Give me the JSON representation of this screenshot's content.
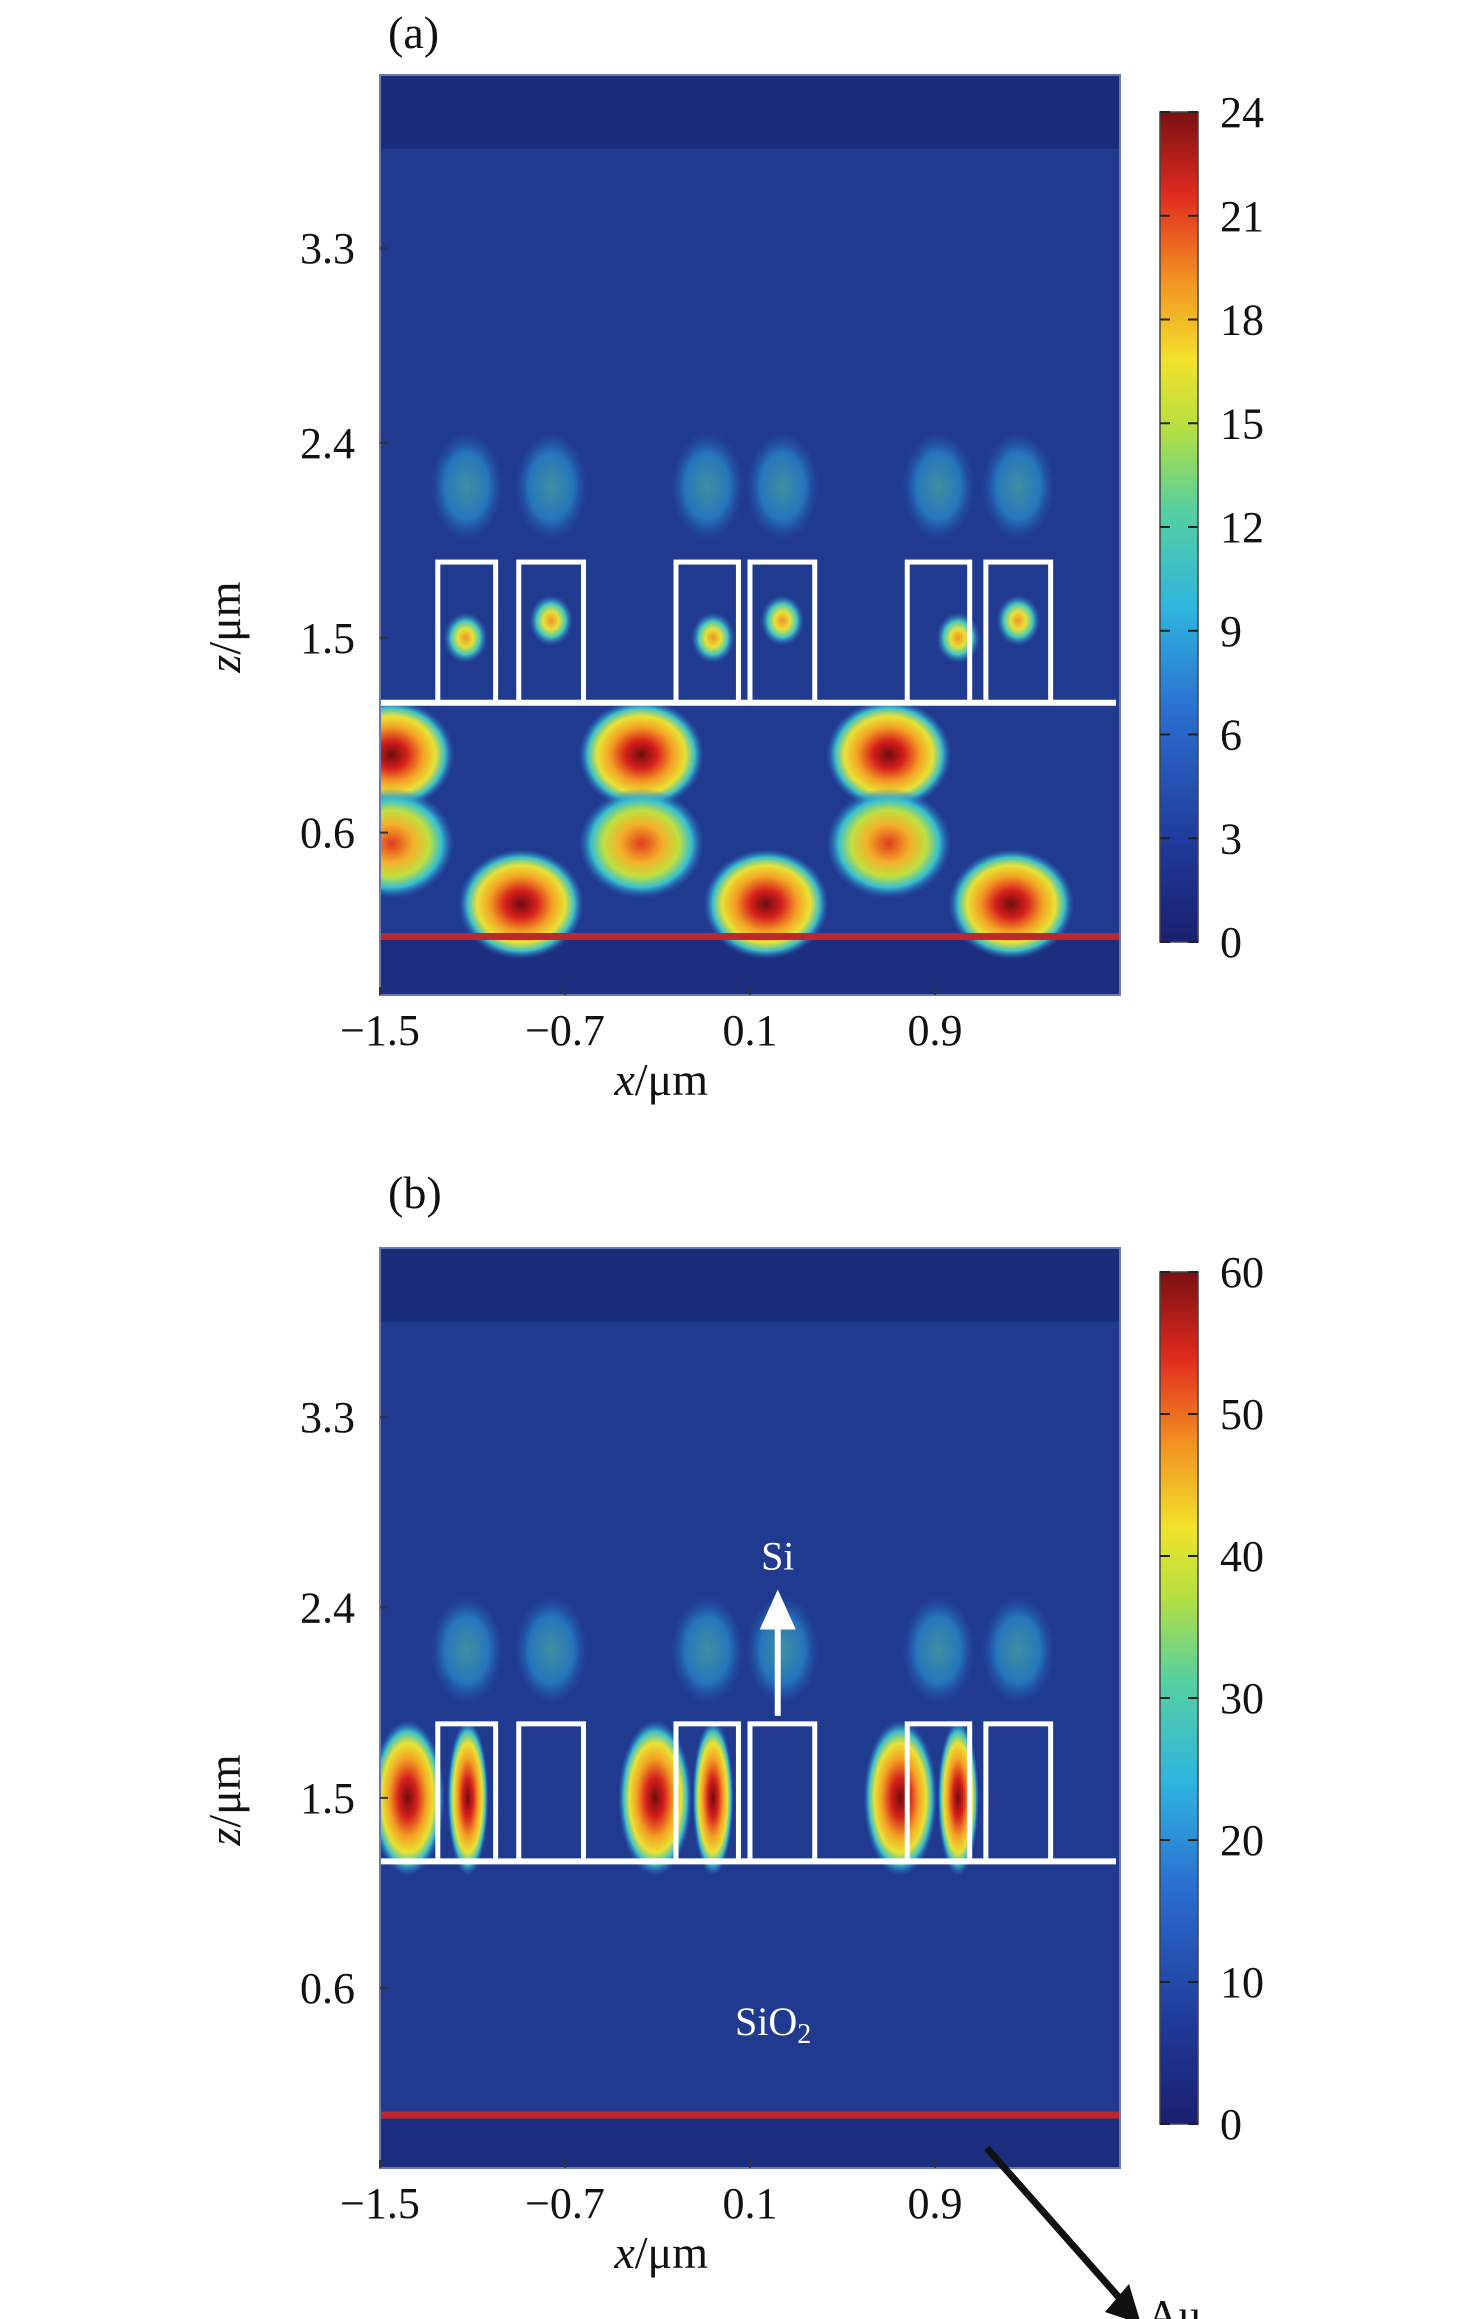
{
  "chart_data": [
    {
      "type": "heatmap",
      "panel_label": "(a)",
      "xlabel_var": "x",
      "xlabel_unit": "/μm",
      "ylabel_var": "z",
      "ylabel_unit": "/μm",
      "xlim": [
        -1.5,
        1.7
      ],
      "ylim": [
        -0.15,
        4.1
      ],
      "x_ticks": [
        -1.5,
        -0.7,
        0.1,
        0.9
      ],
      "x_tick_labels": [
        "−1.5",
        "−0.7",
        "0.1",
        "0.9"
      ],
      "y_ticks": [
        0.6,
        1.5,
        2.4,
        3.3
      ],
      "y_tick_labels": [
        "0.6",
        "1.5",
        "2.4",
        "3.3"
      ],
      "colorbar_ticks": [
        0,
        3,
        6,
        9,
        12,
        15,
        18,
        21,
        24
      ],
      "colorbar_range": [
        0,
        24
      ],
      "colormap": "jet",
      "background_color": "#1f3a8f",
      "grating_line_z": 1.2,
      "metal_line_z": 0.12,
      "metal_line_color": "#c0262d",
      "outline_color": "#ffffff",
      "ridges": [
        {
          "x0": -1.25,
          "x1": -1.0,
          "z0": 1.2,
          "z1": 1.85
        },
        {
          "x0": -0.9,
          "x1": -0.62,
          "z0": 1.2,
          "z1": 1.85
        },
        {
          "x0": -0.22,
          "x1": 0.05,
          "z0": 1.2,
          "z1": 1.85
        },
        {
          "x0": 0.1,
          "x1": 0.38,
          "z0": 1.2,
          "z1": 1.85
        },
        {
          "x0": 0.78,
          "x1": 1.05,
          "z0": 1.2,
          "z1": 1.85
        },
        {
          "x0": 1.12,
          "x1": 1.4,
          "z0": 1.2,
          "z1": 1.85
        }
      ],
      "hotspots": [
        {
          "x": -1.45,
          "z": 0.96,
          "value": 24
        },
        {
          "x": -0.37,
          "z": 0.96,
          "value": 24
        },
        {
          "x": 0.7,
          "z": 0.96,
          "value": 24
        },
        {
          "x": -0.89,
          "z": 0.27,
          "value": 21
        },
        {
          "x": 0.17,
          "z": 0.27,
          "value": 21
        },
        {
          "x": 1.23,
          "z": 0.27,
          "value": 21
        },
        {
          "x": -1.45,
          "z": 0.55,
          "value": 16
        },
        {
          "x": -0.37,
          "z": 0.55,
          "value": 16
        },
        {
          "x": 0.7,
          "z": 0.55,
          "value": 16
        },
        {
          "x": -1.13,
          "z": 1.5,
          "value": 14
        },
        {
          "x": -0.06,
          "z": 1.5,
          "value": 14
        },
        {
          "x": 1.0,
          "z": 1.5,
          "value": 14
        },
        {
          "x": -0.76,
          "z": 1.58,
          "value": 12
        },
        {
          "x": 0.24,
          "z": 1.58,
          "value": 12
        },
        {
          "x": 1.26,
          "z": 1.58,
          "value": 12
        }
      ],
      "annotations": []
    },
    {
      "type": "heatmap",
      "panel_label": "(b)",
      "xlabel_var": "x",
      "xlabel_unit": "/μm",
      "ylabel_var": "z",
      "ylabel_unit": "/μm",
      "xlim": [
        -1.5,
        1.7
      ],
      "ylim": [
        -0.25,
        4.1
      ],
      "x_ticks": [
        -1.5,
        -0.7,
        0.1,
        0.9
      ],
      "x_tick_labels": [
        "−1.5",
        "−0.7",
        "0.1",
        "0.9"
      ],
      "y_ticks": [
        0.6,
        1.5,
        2.4,
        3.3
      ],
      "y_tick_labels": [
        "0.6",
        "1.5",
        "2.4",
        "3.3"
      ],
      "colorbar_ticks": [
        0,
        10,
        20,
        30,
        40,
        50,
        60
      ],
      "colorbar_range": [
        0,
        60
      ],
      "colormap": "jet",
      "background_color": "#1f3a8f",
      "grating_line_z": 1.2,
      "metal_line_z": 0.0,
      "metal_line_color": "#c0262d",
      "outline_color": "#ffffff",
      "ridges": [
        {
          "x0": -1.25,
          "x1": -1.0,
          "z0": 1.2,
          "z1": 1.85
        },
        {
          "x0": -0.9,
          "x1": -0.62,
          "z0": 1.2,
          "z1": 1.85
        },
        {
          "x0": -0.22,
          "x1": 0.05,
          "z0": 1.2,
          "z1": 1.85
        },
        {
          "x0": 0.1,
          "x1": 0.38,
          "z0": 1.2,
          "z1": 1.85
        },
        {
          "x0": 0.78,
          "x1": 1.05,
          "z0": 1.2,
          "z1": 1.85
        },
        {
          "x0": 1.12,
          "x1": 1.4,
          "z0": 1.2,
          "z1": 1.85
        }
      ],
      "hotspots": [
        {
          "x": -1.38,
          "z": 1.5,
          "value": 55
        },
        {
          "x": -1.12,
          "z": 1.5,
          "value": 60
        },
        {
          "x": -0.31,
          "z": 1.5,
          "value": 55
        },
        {
          "x": -0.06,
          "z": 1.5,
          "value": 60
        },
        {
          "x": 0.75,
          "z": 1.5,
          "value": 55
        },
        {
          "x": 1.0,
          "z": 1.5,
          "value": 60
        }
      ],
      "annotations": [
        {
          "text": "Si",
          "x": 0.22,
          "z": 2.58
        },
        {
          "text": "SiO",
          "sub": "2",
          "x": 0.2,
          "z": 0.38
        }
      ],
      "arrow_label": "Au"
    }
  ]
}
